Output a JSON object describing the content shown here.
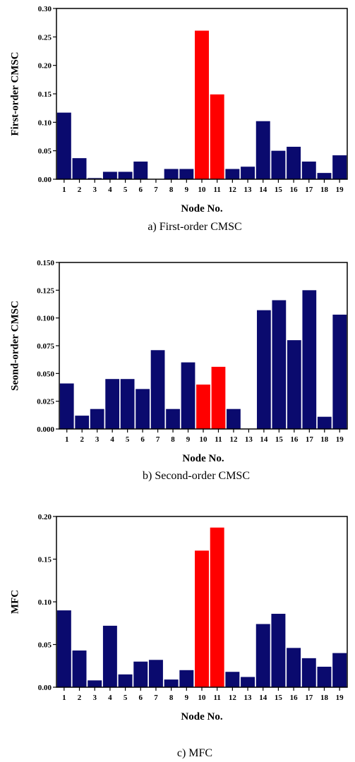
{
  "colors": {
    "normal": "#0a0a6e",
    "highlight": "#ff0000",
    "axis": "#000000"
  },
  "charts": [
    {
      "chart_data": {
        "type": "bar",
        "categories": [
          "1",
          "2",
          "3",
          "4",
          "5",
          "6",
          "7",
          "8",
          "9",
          "10",
          "11",
          "12",
          "13",
          "14",
          "15",
          "16",
          "17",
          "18",
          "19"
        ],
        "values": [
          0.117,
          0.037,
          0.002,
          0.013,
          0.013,
          0.031,
          0.0,
          0.018,
          0.018,
          0.261,
          0.149,
          0.018,
          0.022,
          0.102,
          0.05,
          0.057,
          0.031,
          0.011,
          0.042
        ],
        "highlight_categories": [
          "10",
          "11"
        ],
        "xlabel": "Node No.",
        "ylabel": "First-order  CMSC",
        "ylim": [
          0,
          0.3
        ],
        "yticks": [
          "0.00",
          "0.05",
          "0.10",
          "0.15",
          "0.20",
          "0.25",
          "0.30"
        ],
        "grid": false
      },
      "caption": "a) First-order CMSC"
    },
    {
      "chart_data": {
        "type": "bar",
        "categories": [
          "1",
          "2",
          "3",
          "4",
          "5",
          "6",
          "7",
          "8",
          "9",
          "10",
          "11",
          "12",
          "13",
          "14",
          "15",
          "16",
          "17",
          "18",
          "19"
        ],
        "values": [
          0.041,
          0.012,
          0.018,
          0.045,
          0.045,
          0.036,
          0.071,
          0.018,
          0.06,
          0.04,
          0.056,
          0.018,
          0.0,
          0.107,
          0.116,
          0.08,
          0.125,
          0.011,
          0.103
        ],
        "highlight_categories": [
          "10",
          "11"
        ],
        "xlabel": "Node No.",
        "ylabel": "Seond-order CMSC",
        "ylim": [
          0,
          0.15
        ],
        "yticks": [
          "0.000",
          "0.025",
          "0.050",
          "0.075",
          "0.100",
          "0.125",
          "0.150"
        ],
        "grid": false
      },
      "caption": "b) Second-order CMSC"
    },
    {
      "chart_data": {
        "type": "bar",
        "categories": [
          "1",
          "2",
          "3",
          "4",
          "5",
          "6",
          "7",
          "8",
          "9",
          "10",
          "11",
          "12",
          "13",
          "14",
          "15",
          "16",
          "17",
          "18",
          "19"
        ],
        "values": [
          0.09,
          0.043,
          0.008,
          0.072,
          0.015,
          0.03,
          0.032,
          0.009,
          0.02,
          0.16,
          0.187,
          0.018,
          0.012,
          0.074,
          0.086,
          0.046,
          0.034,
          0.024,
          0.04
        ],
        "highlight_categories": [
          "10",
          "11"
        ],
        "xlabel": "Node No.",
        "ylabel": "MFC",
        "ylim": [
          0,
          0.2
        ],
        "yticks": [
          "0.00",
          "0.05",
          "0.10",
          "0.15",
          "0.20"
        ],
        "grid": false
      },
      "caption": "c) MFC"
    }
  ]
}
